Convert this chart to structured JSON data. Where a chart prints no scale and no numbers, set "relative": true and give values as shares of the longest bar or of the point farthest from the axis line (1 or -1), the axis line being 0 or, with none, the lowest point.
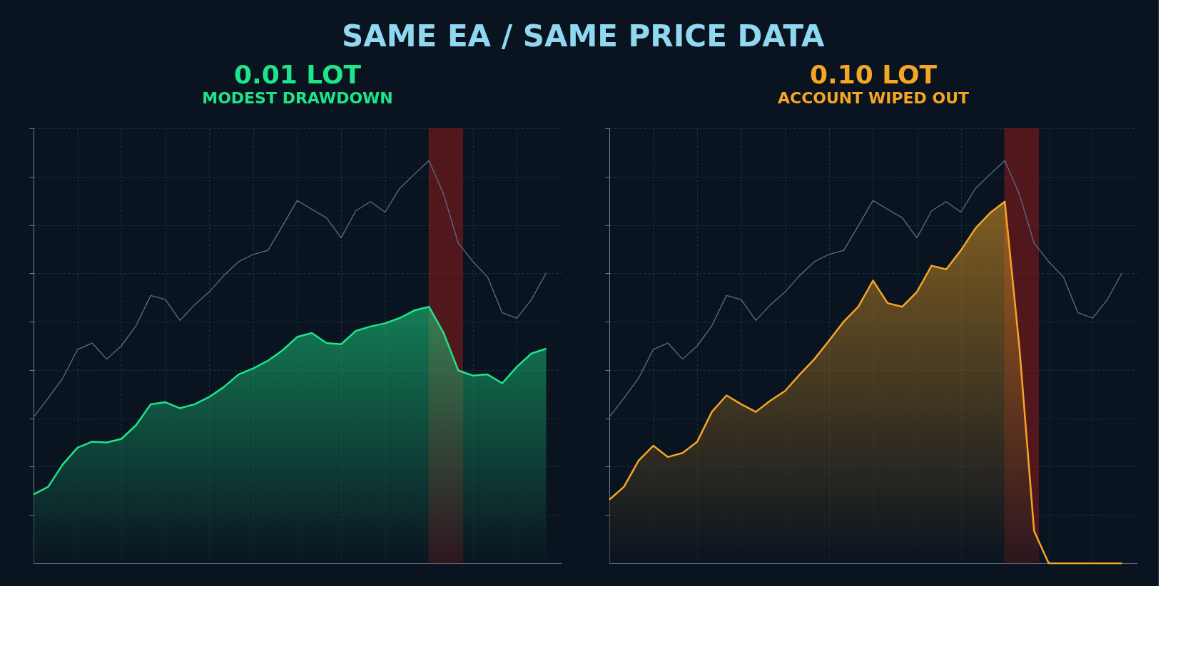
{
  "chart_data": [
    {
      "type": "line",
      "title": "0.01 LOT",
      "subtitle": "MODEST DRAWDOWN",
      "annotations": [
        "SAME EA / SAME PRICE DATA"
      ],
      "relative": true,
      "grid": true,
      "categories": [
        null,
        null,
        null,
        null,
        null,
        null,
        null,
        null,
        null,
        null,
        null,
        null,
        null,
        null,
        null,
        null,
        null,
        null,
        null,
        null,
        null,
        null,
        null,
        null,
        null,
        null,
        null,
        null,
        null,
        null,
        null,
        null,
        null,
        null,
        null,
        null
      ],
      "series": [
        {
          "color": "#5b6e85",
          "values": [
            0.363,
            0.41,
            0.46,
            0.531,
            0.547,
            0.507,
            0.54,
            0.59,
            0.665,
            0.655,
            0.603,
            0.642,
            0.674,
            0.715,
            0.749,
            0.767,
            0.777,
            0.838,
            0.901,
            0.879,
            0.858,
            0.808,
            0.875,
            0.898,
            0.872,
            0.931,
            0.966,
            1.0,
            0.916,
            0.795,
            0.749,
            0.711,
            0.622,
            0.609,
            0.655,
            0.721
          ]
        },
        {
          "type": "area",
          "color": "#1de58a",
          "values": [
            0.171,
            0.19,
            0.246,
            0.287,
            0.302,
            0.3,
            0.309,
            0.343,
            0.395,
            0.4,
            0.385,
            0.395,
            0.413,
            0.438,
            0.469,
            0.484,
            0.503,
            0.529,
            0.562,
            0.572,
            0.547,
            0.544,
            0.577,
            0.588,
            0.596,
            0.609,
            0.628,
            0.637,
            0.572,
            0.479,
            0.466,
            0.469,
            0.447,
            0.488,
            0.521,
            0.533
          ]
        }
      ]
    },
    {
      "type": "line",
      "title": "0.10 LOT",
      "subtitle": "ACCOUNT WIPED OUT",
      "relative": true,
      "grid": true,
      "categories": [
        null,
        null,
        null,
        null,
        null,
        null,
        null,
        null,
        null,
        null,
        null,
        null,
        null,
        null,
        null,
        null,
        null,
        null,
        null,
        null,
        null,
        null,
        null,
        null,
        null,
        null,
        null,
        null,
        null,
        null,
        null,
        null,
        null,
        null,
        null,
        null
      ],
      "series": [
        {
          "color": "#5b6e85",
          "values": [
            0.363,
            0.41,
            0.46,
            0.531,
            0.547,
            0.507,
            0.54,
            0.59,
            0.665,
            0.655,
            0.603,
            0.642,
            0.674,
            0.715,
            0.749,
            0.767,
            0.777,
            0.838,
            0.901,
            0.879,
            0.858,
            0.808,
            0.875,
            0.898,
            0.872,
            0.931,
            0.966,
            1.0,
            0.916,
            0.795,
            0.749,
            0.711,
            0.622,
            0.609,
            0.655,
            0.721
          ]
        },
        {
          "type": "area",
          "color": "#f5a623",
          "values": [
            0.158,
            0.19,
            0.255,
            0.292,
            0.264,
            0.274,
            0.302,
            0.376,
            0.417,
            0.395,
            0.376,
            0.404,
            0.428,
            0.469,
            0.507,
            0.553,
            0.6,
            0.637,
            0.702,
            0.646,
            0.637,
            0.674,
            0.739,
            0.73,
            0.777,
            0.832,
            0.87,
            0.898,
            0.535,
            0.08,
            0,
            0,
            0,
            0,
            0,
            0
          ]
        }
      ]
    }
  ]
}
